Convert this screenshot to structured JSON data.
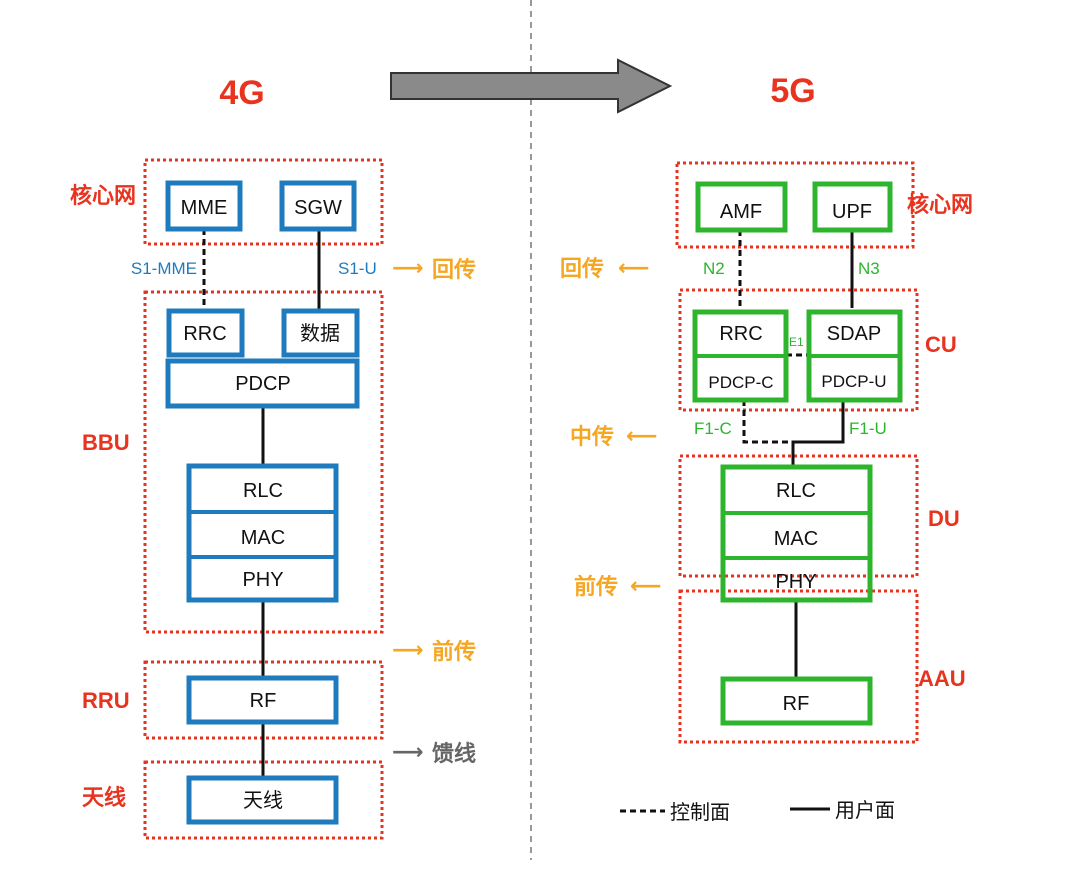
{
  "colors": {
    "lte_blue": "#1f7bbd",
    "nr_green": "#2db52d",
    "label_red": "#e8331f",
    "transport_orange": "#f5a623",
    "feeder_gray": "#666666"
  },
  "left": {
    "title": "4G",
    "core_label": "核心网",
    "bbu_label": "BBU",
    "rru_label": "RRU",
    "antenna_label": "天线",
    "mme": "MME",
    "sgw": "SGW",
    "rrc": "RRC",
    "data": "数据",
    "pdcp": "PDCP",
    "rlc": "RLC",
    "mac": "MAC",
    "phy": "PHY",
    "rf": "RF",
    "antenna": "天线",
    "s1_mme": "S1-MME",
    "s1_u": "S1-U",
    "backhaul": "回传",
    "fronthaul": "前传",
    "feeder": "馈线"
  },
  "right": {
    "title": "5G",
    "core_label": "核心网",
    "cu_label": "CU",
    "du_label": "DU",
    "aau_label": "AAU",
    "amf": "AMF",
    "upf": "UPF",
    "rrc": "RRC",
    "pdcp_c": "PDCP-C",
    "sdap": "SDAP",
    "pdcp_u": "PDCP-U",
    "rlc": "RLC",
    "mac": "MAC",
    "phy": "PHY",
    "rf": "RF",
    "n2": "N2",
    "n3": "N3",
    "e1": "E1",
    "f1_c": "F1-C",
    "f1_u": "F1-U",
    "backhaul": "回传",
    "midhaul": "中传",
    "fronthaul": "前传"
  },
  "legend": {
    "control_plane": "控制面",
    "user_plane": "用户面"
  }
}
